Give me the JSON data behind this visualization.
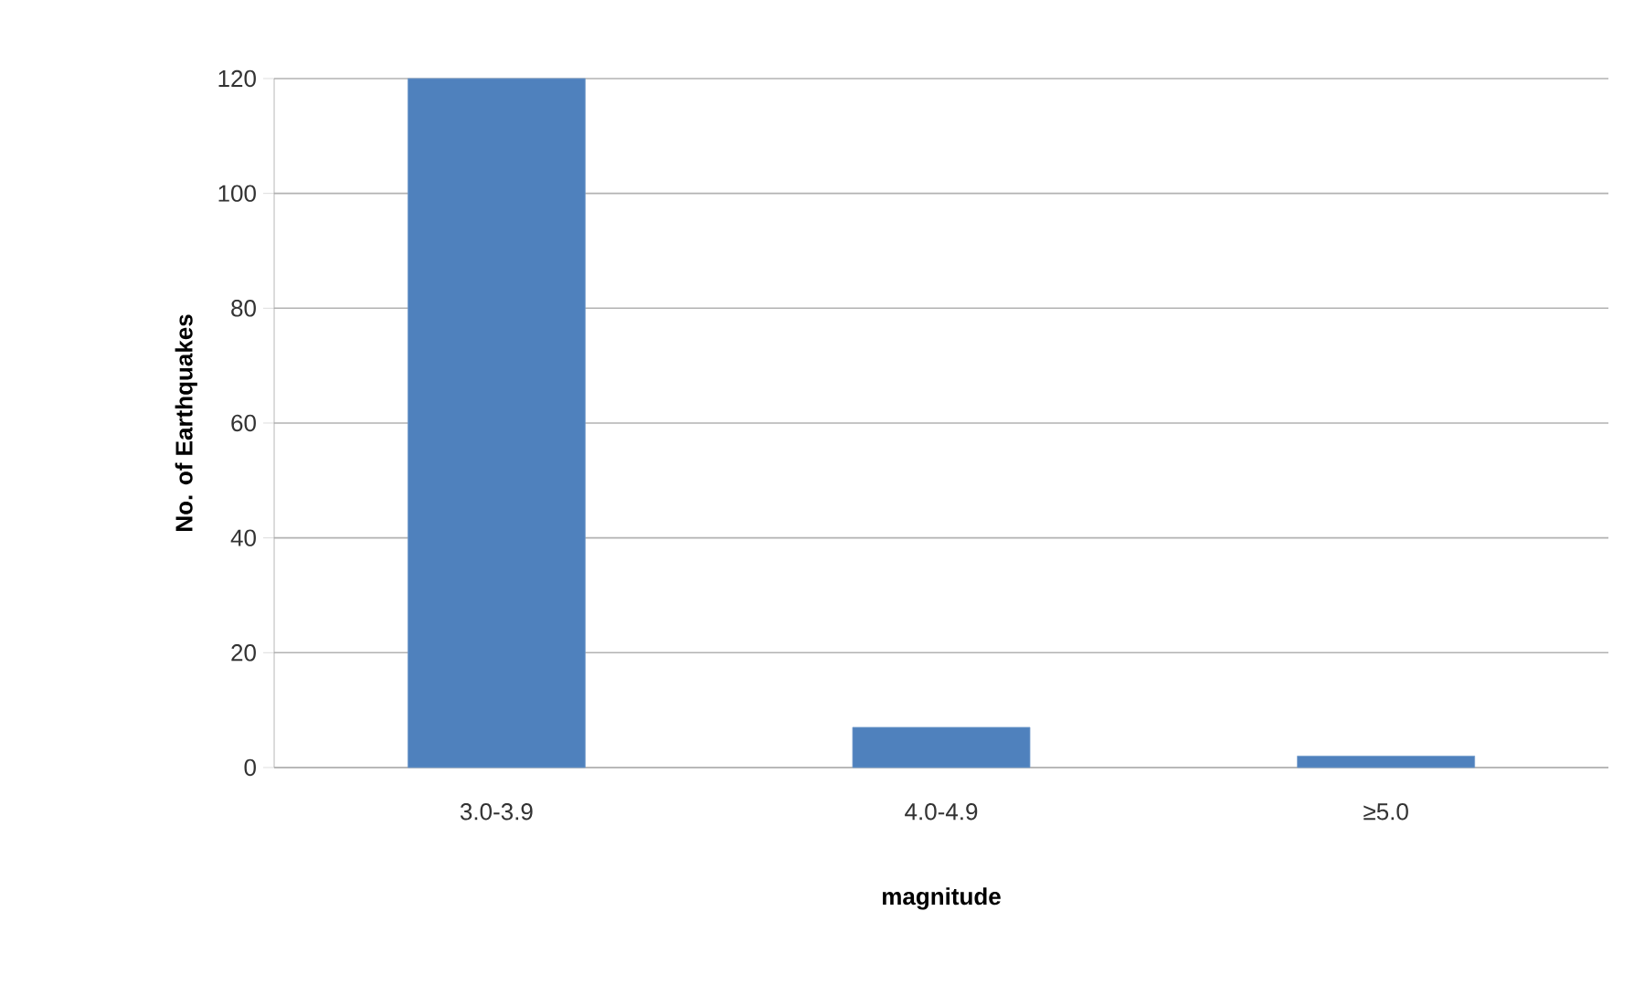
{
  "chart_data": {
    "type": "bar",
    "xlabel": "magnitude",
    "ylabel": "No. of Earthquakes",
    "categories": [
      "3.0-3.9",
      "4.0-4.9",
      "≥5.0"
    ],
    "values": [
      120,
      7,
      2
    ],
    "color": "#4f81bd",
    "ylim": [
      0,
      120
    ],
    "yticks": [
      0,
      20,
      40,
      60,
      80,
      100,
      120
    ],
    "grid": "y"
  }
}
